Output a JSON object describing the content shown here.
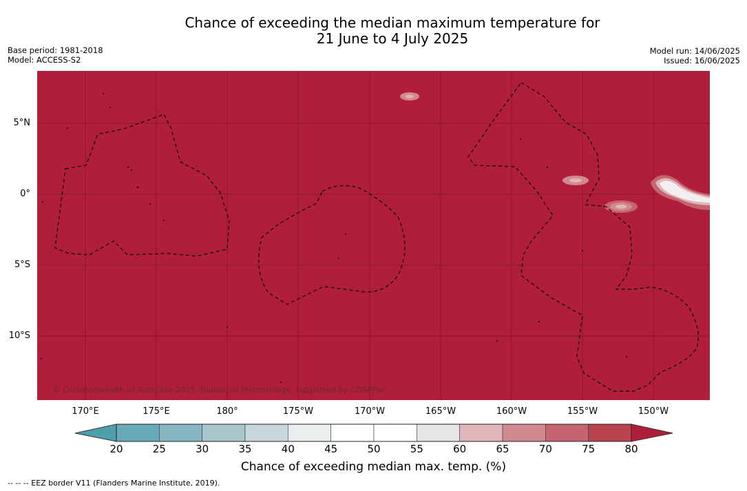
{
  "title_line1": "Chance of exceeding the median maximum temperature for",
  "title_line2": "21 June to 4 July 2025",
  "meta_left": {
    "base_period": "Base period: 1981-2018",
    "model": "Model: ACCESS-S2"
  },
  "meta_right": {
    "model_run": "Model run: 14/06/2025",
    "issued": "Issued: 16/06/2025"
  },
  "copyright": "© Commonwealth of Australia 2025, Bureau of Meteorology, supported by COSPPac",
  "lat_labels": [
    "5°N",
    "0°",
    "5°S",
    "10°S"
  ],
  "lon_labels": [
    "170°E",
    "175°E",
    "180°",
    "175°W",
    "170°W",
    "165°W",
    "160°W",
    "155°W",
    "150°W"
  ],
  "colorbar": {
    "ticks": [
      "20",
      "25",
      "30",
      "35",
      "40",
      "45",
      "50",
      "55",
      "60",
      "65",
      "70",
      "75",
      "80"
    ],
    "colors": [
      "#69aab9",
      "#88b5c2",
      "#a6c6cc",
      "#c8d7db",
      "#eaeeef",
      "#ffffff",
      "#ffffff",
      "#e6e4e4",
      "#dfb6bb",
      "#d2888f",
      "#c6646f",
      "#b9434f"
    ],
    "under_color": "#4e9fae",
    "over_color": "#b11e3a",
    "title": "Chance of exceeding median max. temp. (%)"
  },
  "map_fill_color": "#b01e3b",
  "legend_eez": "--  --  -- EEZ border V11 (Flanders Marine Institute, 2019)."
}
